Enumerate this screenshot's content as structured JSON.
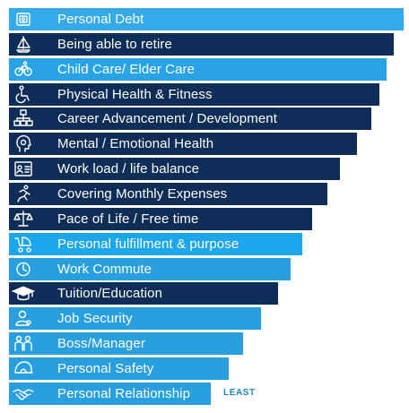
{
  "chart_data": {
    "type": "bar",
    "orientation": "horizontal",
    "categories": [
      "Personal Debt",
      "Being able to retire",
      "Child  Care/ Elder Care",
      "Physical Health & Fitness",
      "Career Advancement / Development",
      "Mental / Emotional Health",
      "Work load / life balance",
      "Covering Monthly Expenses",
      "Pace of Life / Free time",
      "Personal fulfillment & purpose",
      "Work Commute",
      "Tuition/Education",
      "Job Security",
      "Boss/Manager",
      "Personal Safety",
      "Personal Relationship"
    ],
    "values": [
      16,
      15.6,
      15.3,
      15.0,
      14.7,
      14.1,
      13.4,
      12.9,
      12.3,
      11.9,
      11.4,
      10.9,
      10.2,
      9.5,
      8.9,
      8.2
    ],
    "xlim": [
      0,
      16
    ],
    "grid": false,
    "legend": "none",
    "annotations": [
      {
        "text": "LEAST",
        "category": "Personal Relationship"
      }
    ]
  },
  "bars": [
    {
      "icon": "wallet-icon",
      "color": "#35aaea"
    },
    {
      "icon": "sailboat-icon",
      "color": "#0f2e57"
    },
    {
      "icon": "family-icon",
      "color": "#2aa3e6"
    },
    {
      "icon": "wheelchair-icon",
      "color": "#0f2e57"
    },
    {
      "icon": "org-chart-icon",
      "color": "#0f2e57"
    },
    {
      "icon": "head-gear-icon",
      "color": "#0f2e57"
    },
    {
      "icon": "id-card-icon",
      "color": "#0f2e57"
    },
    {
      "icon": "running-person-icon",
      "color": "#0f2e57"
    },
    {
      "icon": "balance-scale-icon",
      "color": "#0f2e57"
    },
    {
      "icon": "stroller-icon",
      "color": "#1da6ec"
    },
    {
      "icon": "clock-icon",
      "color": "#2a9fe0"
    },
    {
      "icon": "graduation-cap-icon",
      "color": "#0f2e57"
    },
    {
      "icon": "user-badge-icon",
      "color": "#2a9fe0"
    },
    {
      "icon": "manager-team-icon",
      "color": "#2a9fe0"
    },
    {
      "icon": "safety-helmet-icon",
      "color": "#2a9fe0"
    },
    {
      "icon": "handshake-icon",
      "color": "#2a9fe0"
    }
  ],
  "colors": {
    "dark_bar": "#0f2e57",
    "light_bar": "#2aa3e6",
    "annotation": "#1f87c7",
    "label": "#ffffff"
  }
}
